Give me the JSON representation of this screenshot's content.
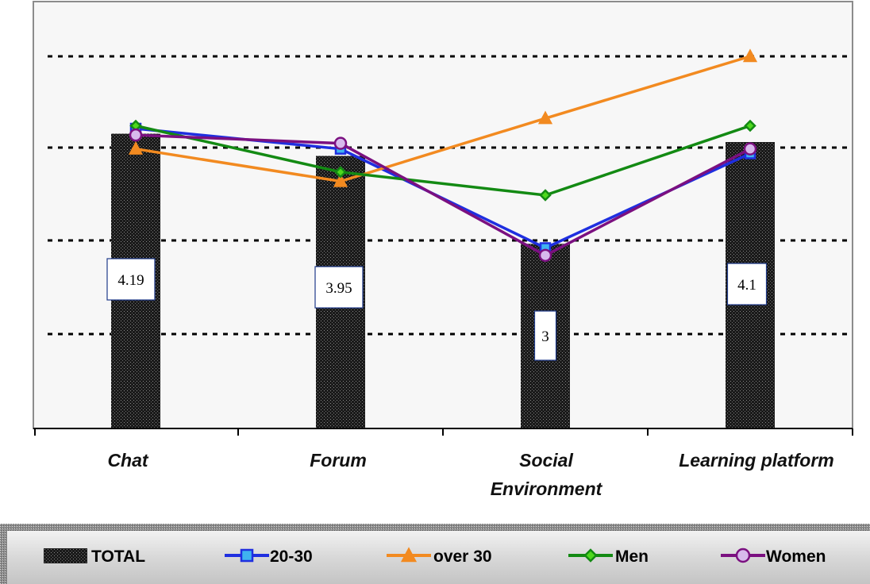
{
  "chart_data": {
    "type": "bar",
    "categories": [
      "Chat",
      "Forum",
      "Social Environment",
      "Learning platform"
    ],
    "category_lines": [
      [
        "Chat"
      ],
      [
        "Forum"
      ],
      [
        "Social",
        "Environment"
      ],
      [
        "Learning platform"
      ]
    ],
    "ylim": [
      1,
      5
    ],
    "grid": "horizontal dotted",
    "legend_position": "bottom",
    "bar_series": {
      "name": "TOTAL",
      "values": [
        4.19,
        3.95,
        3.0,
        4.1
      ],
      "data_labels": [
        "4.19",
        "3.95",
        "3",
        "4.1"
      ]
    },
    "line_series": [
      {
        "name": "20-30",
        "values": [
          4.22,
          4.0,
          2.93,
          3.95
        ],
        "color": "#1f2fe0",
        "marker": "square",
        "marker_fill": "#3fb3f0"
      },
      {
        "name": "over 30",
        "values": [
          4.0,
          3.65,
          4.33,
          5.0
        ],
        "color": "#f28a20",
        "marker": "triangle",
        "marker_fill": "#f28a20"
      },
      {
        "name": "Men",
        "values": [
          4.25,
          3.75,
          3.5,
          4.25
        ],
        "color": "#138a13",
        "marker": "diamond",
        "marker_fill": "#4ed81e"
      },
      {
        "name": "Women",
        "values": [
          4.15,
          4.06,
          2.85,
          4.0
        ],
        "color": "#7b1080",
        "marker": "circle",
        "marker_fill": "#d7b9ec"
      }
    ]
  }
}
